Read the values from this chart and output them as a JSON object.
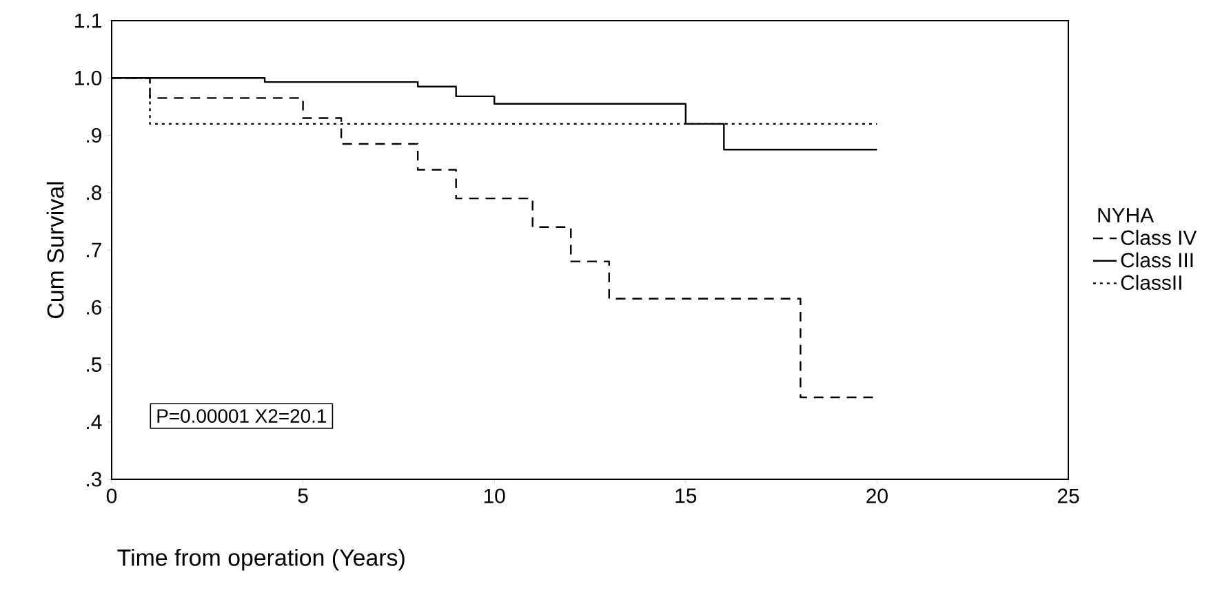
{
  "chart_data": {
    "type": "step",
    "xlabel": "Time from operation (Years)",
    "ylabel": "Cum Survival",
    "legend_title": "NYHA",
    "xlim": [
      0,
      25
    ],
    "xticks": [
      0,
      5,
      10,
      15,
      20,
      25
    ],
    "ylim": [
      0.3,
      1.1
    ],
    "yticks": [
      {
        "value": 0.3,
        "label": ".3"
      },
      {
        "value": 0.4,
        "label": ".4"
      },
      {
        "value": 0.5,
        "label": ".5"
      },
      {
        "value": 0.6,
        "label": ".6"
      },
      {
        "value": 0.7,
        "label": ".7"
      },
      {
        "value": 0.8,
        "label": ".8"
      },
      {
        "value": 0.9,
        "label": ".9"
      },
      {
        "value": 1.0,
        "label": "1.0"
      },
      {
        "value": 1.1,
        "label": "1.1"
      }
    ],
    "grid": false,
    "legend": "right",
    "marker": "none",
    "series": [
      {
        "name": "Class IV",
        "color": "#000000",
        "line_style": "dashed",
        "x": [
          0,
          1,
          5,
          6,
          8,
          9,
          11,
          12,
          13,
          18,
          20
        ],
        "values": [
          1.0,
          0.965,
          0.93,
          0.885,
          0.84,
          0.79,
          0.74,
          0.68,
          0.615,
          0.443,
          0.443
        ]
      },
      {
        "name": "Class III",
        "color": "#000000",
        "line_style": "solid",
        "x": [
          0,
          4,
          8,
          9,
          10,
          15,
          16,
          20
        ],
        "values": [
          1.0,
          0.993,
          0.985,
          0.968,
          0.955,
          0.92,
          0.875,
          0.875
        ]
      },
      {
        "name": "ClassII",
        "color": "#000000",
        "line_style": "dotted",
        "x": [
          0,
          1,
          20
        ],
        "values": [
          1.0,
          0.92,
          0.92
        ]
      }
    ],
    "annotations": [
      "P=0.00001    X2=20.1"
    ]
  }
}
